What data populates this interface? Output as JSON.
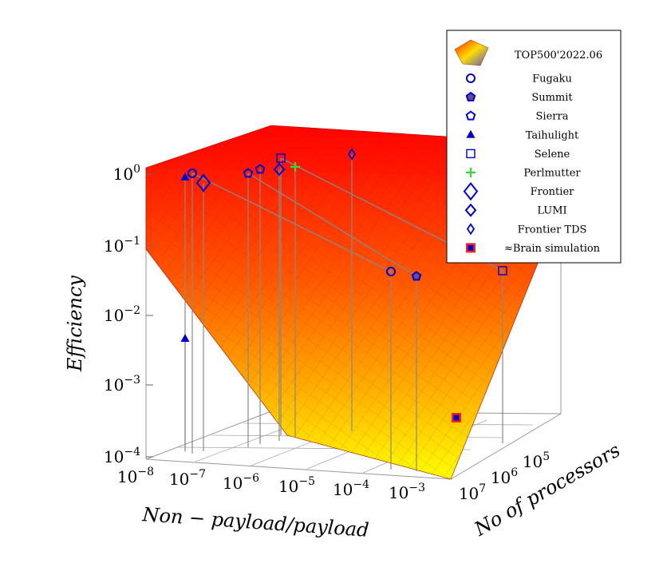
{
  "chart_data": {
    "type": "surface3d-scatter",
    "surface_name": "TOP500'2022.06",
    "xlabel": "Non − payload/payload",
    "ylabel": "No of processors",
    "zlabel": "Efficiency",
    "x_scale": "log",
    "y_scale": "log",
    "z_scale": "log",
    "x_ticks": [
      "10−8",
      "10−7",
      "10−6",
      "10−5",
      "10−4",
      "10−3"
    ],
    "y_ticks": [
      "105",
      "106",
      "107"
    ],
    "z_ticks": [
      "100",
      "10−1",
      "10−2",
      "10−3",
      "10−4"
    ],
    "xlim": [
      1e-08,
      0.001
    ],
    "ylim": [
      10000.0,
      10000000.0
    ],
    "zlim": [
      0.0001,
      1
    ],
    "legend_position": "top-right",
    "colors": {
      "surface_high": "#ff0000",
      "surface_low": "#ffff00",
      "markers": "#0000cc",
      "perlmutter": "#33dd33",
      "brain_fill": "#ff2020",
      "drop_lines": "#888888"
    },
    "series": [
      {
        "name": "Fugaku",
        "marker": "circle"
      },
      {
        "name": "Summit",
        "marker": "pentagon-filled"
      },
      {
        "name": "Sierra",
        "marker": "pentagon"
      },
      {
        "name": "Taihulight",
        "marker": "triangle-filled"
      },
      {
        "name": "Selene",
        "marker": "square"
      },
      {
        "name": "Perlmutter",
        "marker": "plus"
      },
      {
        "name": "Frontier",
        "marker": "diamond-large"
      },
      {
        "name": "LUMI",
        "marker": "diamond"
      },
      {
        "name": "Frontier TDS",
        "marker": "diamond-small"
      },
      {
        "name": "≈Brain simulation",
        "marker": "square-filled"
      }
    ]
  }
}
